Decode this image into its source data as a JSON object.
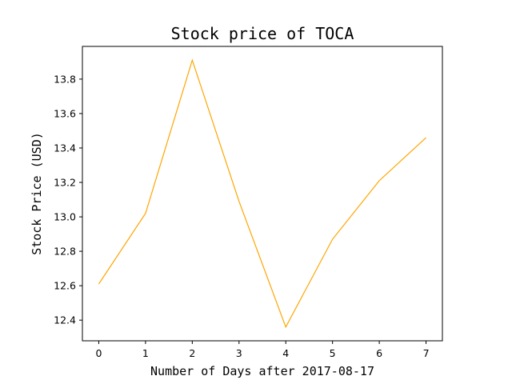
{
  "chart_data": {
    "type": "line",
    "title": "Stock price of TOCA",
    "xlabel": "Number of Days after 2017-08-17",
    "ylabel": "Stock Price (USD)",
    "x": [
      0,
      1,
      2,
      3,
      4,
      5,
      6,
      7
    ],
    "series": [
      {
        "values": [
          12.61,
          13.02,
          13.91,
          13.09,
          12.36,
          12.87,
          13.21,
          13.46
        ],
        "color": "#ffa500"
      }
    ],
    "xlim": [
      -0.35,
      7.35
    ],
    "ylim": [
      12.28,
      13.99
    ],
    "xticks": [
      "0",
      "1",
      "2",
      "3",
      "4",
      "5",
      "6",
      "7"
    ],
    "yticks": [
      "12.4",
      "12.6",
      "12.8",
      "13.0",
      "13.2",
      "13.4",
      "13.6",
      "13.8"
    ],
    "grid": false,
    "legend": "none"
  }
}
